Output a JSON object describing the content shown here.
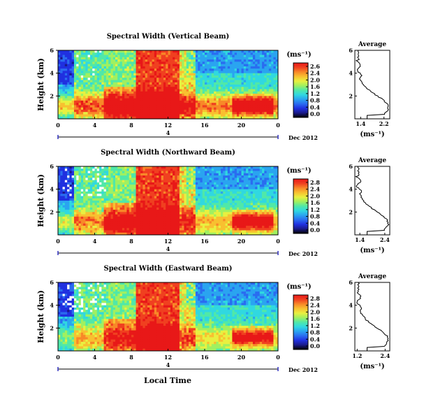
{
  "figure": {
    "bottom_xlabel": "Local Time",
    "date_label": "Dec 2012",
    "x_ticks": [
      "0",
      "4",
      "8",
      "12",
      "16",
      "20",
      "0"
    ],
    "y_ticks": [
      "6",
      "4",
      "2"
    ],
    "ylabel": "Height (km)",
    "colorbar_unit": "(ms⁻¹)",
    "avg_title": "Average",
    "avg_xlabel": "(ms⁻¹)",
    "avg_y_ticks": [
      "6",
      "4",
      "2"
    ],
    "colormap": [
      "#000000",
      "#1a1a8a",
      "#2030e0",
      "#2a6cf0",
      "#2aa4f0",
      "#30d8e0",
      "#50e8a8",
      "#a0f060",
      "#e8f040",
      "#f8c030",
      "#f88828",
      "#f04020",
      "#e81818"
    ]
  },
  "chart_data": [
    {
      "type": "heatmap",
      "title": "Spectral Width (Vertical Beam)",
      "xlabel": "Local Time",
      "ylabel": "Height (km)",
      "x_range": [
        0,
        24
      ],
      "y_range": [
        0,
        6
      ],
      "colorbar": {
        "ticks": [
          "2.6",
          "2.4",
          "2.0",
          "1.6",
          "1.2",
          "0.8",
          "0.4",
          "0.0"
        ]
      },
      "average": {
        "title": "Average",
        "x_ticks": [
          "1.4",
          "2.2"
        ],
        "x_range": [
          1.2,
          2.4
        ]
      }
    },
    {
      "type": "heatmap",
      "title": "Spectral Width (Northward Beam)",
      "xlabel": "Local Time",
      "ylabel": "Height (km)",
      "x_range": [
        0,
        24
      ],
      "y_range": [
        0,
        6
      ],
      "colorbar": {
        "ticks": [
          "2.8",
          "2.4",
          "2.0",
          "1.6",
          "1.2",
          "0.8",
          "0.4",
          "0.0"
        ]
      },
      "average": {
        "title": "Average",
        "x_ticks": [
          "1.4",
          "2.4"
        ],
        "x_range": [
          1.2,
          2.6
        ]
      }
    },
    {
      "type": "heatmap",
      "title": "Spectral Width (Eastward Beam)",
      "xlabel": "Local Time",
      "ylabel": "Height (km)",
      "x_range": [
        0,
        24
      ],
      "y_range": [
        0,
        6
      ],
      "colorbar": {
        "ticks": [
          "2.8",
          "2.4",
          "2.0",
          "1.6",
          "1.2",
          "0.8",
          "0.4",
          "0.0"
        ]
      },
      "average": {
        "title": "Average",
        "x_ticks": [
          "1.2",
          "2.4"
        ],
        "x_range": [
          1.1,
          2.6
        ]
      }
    }
  ]
}
